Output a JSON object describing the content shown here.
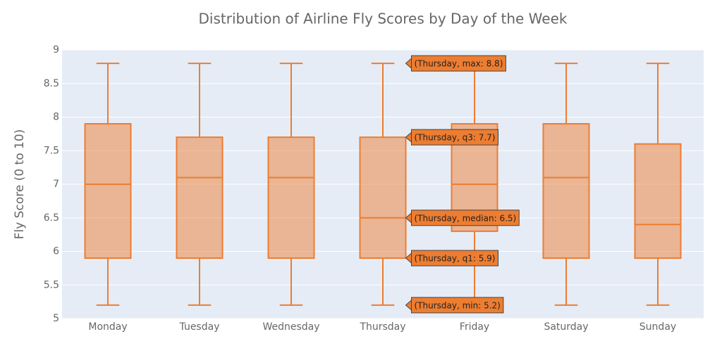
{
  "chart_data": {
    "type": "box",
    "title": "Distribution of Airline Fly Scores by Day of the Week",
    "y_label": "Fly Score (0 to 10)",
    "categories": [
      "Monday",
      "Tuesday",
      "Wednesday",
      "Thursday",
      "Friday",
      "Saturday",
      "Sunday"
    ],
    "min": [
      5.2,
      5.2,
      5.2,
      5.2,
      5.2,
      5.2,
      5.2
    ],
    "q1": [
      5.9,
      5.9,
      5.9,
      5.9,
      6.3,
      5.9,
      5.9
    ],
    "median": [
      7.0,
      7.1,
      7.1,
      6.5,
      7.0,
      7.1,
      6.4
    ],
    "q3": [
      7.9,
      7.7,
      7.7,
      7.7,
      7.9,
      7.9,
      7.6
    ],
    "max": [
      8.8,
      8.8,
      8.8,
      8.8,
      8.8,
      8.8,
      8.8
    ],
    "color": "#ed7d31",
    "ylim": [
      5,
      9
    ],
    "yticks": [
      5,
      5.5,
      6,
      6.5,
      7,
      7.5,
      8,
      8.5,
      9
    ],
    "grid": true,
    "hover_labels": [
      {
        "value": 8.8,
        "label": "(Thursday, max: 8.8)"
      },
      {
        "value": 7.7,
        "label": "(Thursday, q3: 7.7)"
      },
      {
        "value": 6.5,
        "label": "(Thursday, median: 6.5)"
      },
      {
        "value": 5.9,
        "label": "(Thursday, q1: 5.9)"
      },
      {
        "value": 5.2,
        "label": "(Thursday, min: 5.2)"
      }
    ]
  }
}
